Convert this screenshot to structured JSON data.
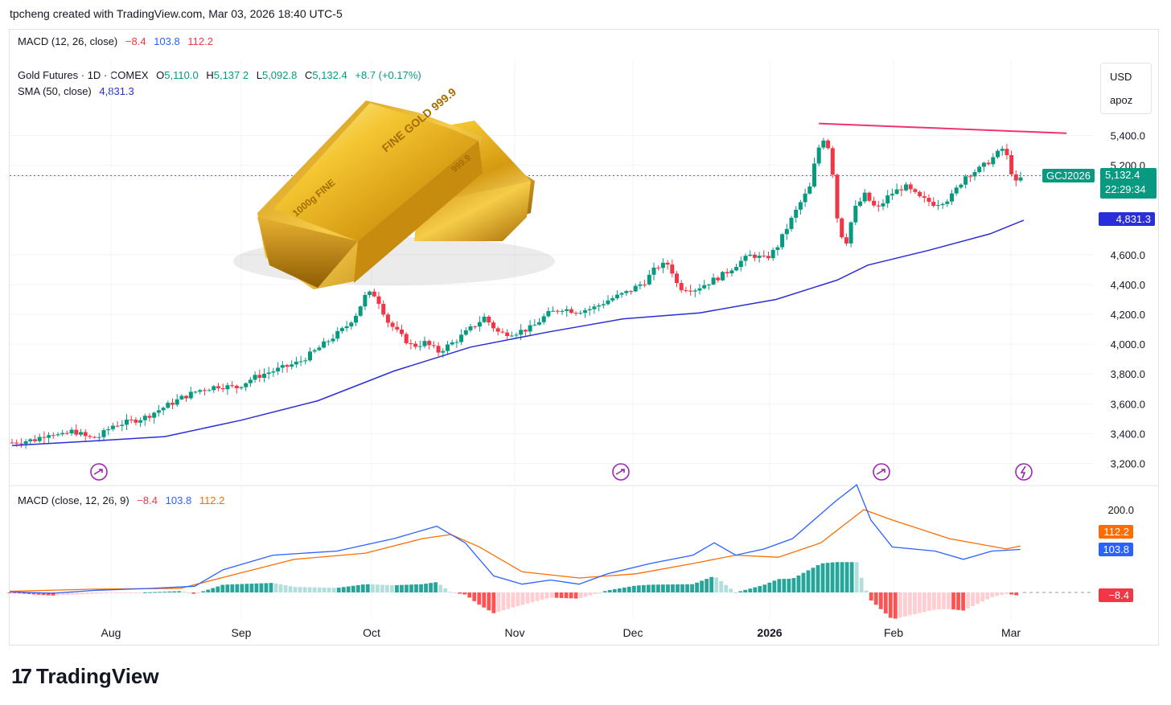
{
  "header": {
    "created_text": "tpcheng created with TradingView.com, Mar 03, 2026 18:40 UTC-5"
  },
  "top_legend": {
    "name": "MACD (12, 26, close)",
    "v1": "−8.4",
    "v2": "103.8",
    "v3": "112.2"
  },
  "symbol": {
    "name": "Gold Futures · 1D · COMEX",
    "o_label": "O",
    "o": "5,110.0",
    "h_label": "H",
    "h": "5,137.2",
    "l_label": "L",
    "l": "5,092.8",
    "c_label": "C",
    "c": "5,132.4",
    "change": "+8.7 (+0.17%)"
  },
  "sma_legend": {
    "name": "SMA (50, close)",
    "value": "4,831.3"
  },
  "macd_legend": {
    "name": "MACD (close, 12, 26, 9)",
    "v1": "−8.4",
    "v2": "103.8",
    "v3": "112.2"
  },
  "unit_labels": {
    "currency": "USD",
    "extra": "apoz"
  },
  "price_tags": {
    "ticker": "GCJ2026",
    "last": "5,132.4",
    "countdown": "22:29:34",
    "sma": "4,831.3",
    "macd_signal": "112.2",
    "macd_line": "103.8",
    "macd_hist": "−8.4"
  },
  "price_axis_ticks": [
    "5,400.0",
    "5,200.0",
    "4,600.0",
    "4,400.0",
    "4,200.0",
    "4,000.0",
    "3,800.0",
    "3,600.0",
    "3,400.0",
    "3,200.0"
  ],
  "macd_axis_ticks": [
    "200.0"
  ],
  "time_axis_labels": [
    "Aug",
    "Sep",
    "Oct",
    "Nov",
    "Dec",
    "2026",
    "Feb",
    "Mar"
  ],
  "gold_bar_text": {
    "front_top": "FINE GOLD 999.9",
    "front_side": "1000g FINE",
    "back_top": "999.9"
  },
  "branding": {
    "logo_text": "TradingView",
    "logo_mark": "17"
  },
  "colors": {
    "up": "#089981",
    "down": "#f23645",
    "sma": "#2a2ed6",
    "macd": "#2962ff",
    "signal": "#ff6d00",
    "resistance": "#f0336c"
  },
  "chart_data": {
    "type": "candlestick",
    "instrument": "Gold Futures · 1D · COMEX",
    "ylim": [
      3100,
      5650
    ],
    "y_ticks": [
      3200,
      3400,
      3600,
      3800,
      4000,
      4200,
      4400,
      4600,
      5200,
      5400
    ],
    "x_labels": [
      "Aug",
      "Sep",
      "Oct",
      "Nov",
      "Dec",
      "2026",
      "Feb",
      "Mar"
    ],
    "close_path": [
      {
        "x": 0,
        "y": 3340
      },
      {
        "x": 15,
        "y": 3360
      },
      {
        "x": 25,
        "y": 3410
      },
      {
        "x": 32,
        "y": 3380
      },
      {
        "x": 40,
        "y": 3420
      },
      {
        "x": 50,
        "y": 3370
      },
      {
        "x": 57,
        "y": 3380
      },
      {
        "x": 66,
        "y": 3455
      },
      {
        "x": 75,
        "y": 3475
      },
      {
        "x": 87,
        "y": 3510
      },
      {
        "x": 100,
        "y": 3580
      },
      {
        "x": 111,
        "y": 3640
      },
      {
        "x": 122,
        "y": 3690
      },
      {
        "x": 135,
        "y": 3720
      },
      {
        "x": 147,
        "y": 3710
      },
      {
        "x": 157,
        "y": 3770
      },
      {
        "x": 166,
        "y": 3805
      },
      {
        "x": 177,
        "y": 3840
      },
      {
        "x": 188,
        "y": 3880
      },
      {
        "x": 199,
        "y": 3960
      },
      {
        "x": 209,
        "y": 4040
      },
      {
        "x": 218,
        "y": 4110
      },
      {
        "x": 225,
        "y": 4200
      },
      {
        "x": 232,
        "y": 4340
      },
      {
        "x": 238,
        "y": 4330
      },
      {
        "x": 246,
        "y": 4150
      },
      {
        "x": 254,
        "y": 4060
      },
      {
        "x": 262,
        "y": 3985
      },
      {
        "x": 270,
        "y": 4010
      },
      {
        "x": 279,
        "y": 3950
      },
      {
        "x": 290,
        "y": 4020
      },
      {
        "x": 302,
        "y": 4120
      },
      {
        "x": 309,
        "y": 4180
      },
      {
        "x": 319,
        "y": 4070
      },
      {
        "x": 330,
        "y": 4080
      },
      {
        "x": 340,
        "y": 4110
      },
      {
        "x": 350,
        "y": 4200
      },
      {
        "x": 360,
        "y": 4240
      },
      {
        "x": 369,
        "y": 4220
      },
      {
        "x": 380,
        "y": 4240
      },
      {
        "x": 391,
        "y": 4300
      },
      {
        "x": 403,
        "y": 4350
      },
      {
        "x": 414,
        "y": 4420
      },
      {
        "x": 422,
        "y": 4520
      },
      {
        "x": 430,
        "y": 4540
      },
      {
        "x": 436,
        "y": 4380
      },
      {
        "x": 447,
        "y": 4370
      },
      {
        "x": 457,
        "y": 4420
      },
      {
        "x": 466,
        "y": 4470
      },
      {
        "x": 476,
        "y": 4550
      },
      {
        "x": 484,
        "y": 4600
      },
      {
        "x": 493,
        "y": 4570
      },
      {
        "x": 500,
        "y": 4640
      },
      {
        "x": 508,
        "y": 4800
      },
      {
        "x": 516,
        "y": 4950
      },
      {
        "x": 522,
        "y": 5050
      },
      {
        "x": 527,
        "y": 5300
      },
      {
        "x": 532,
        "y": 5400
      },
      {
        "x": 536,
        "y": 5250
      },
      {
        "x": 540,
        "y": 4850
      },
      {
        "x": 545,
        "y": 4650
      },
      {
        "x": 551,
        "y": 4900
      },
      {
        "x": 558,
        "y": 5000
      },
      {
        "x": 566,
        "y": 4900
      },
      {
        "x": 574,
        "y": 5000
      },
      {
        "x": 584,
        "y": 5060
      },
      {
        "x": 594,
        "y": 4980
      },
      {
        "x": 604,
        "y": 4940
      },
      {
        "x": 614,
        "y": 4980
      },
      {
        "x": 624,
        "y": 5130
      },
      {
        "x": 634,
        "y": 5180
      },
      {
        "x": 643,
        "y": 5260
      },
      {
        "x": 648,
        "y": 5310
      },
      {
        "x": 652,
        "y": 5240
      },
      {
        "x": 656,
        "y": 5070
      },
      {
        "x": 662,
        "y": 5132.4
      }
    ],
    "sma50": {
      "name": "SMA (50, close)",
      "points": [
        {
          "x": 0,
          "y": 3320
        },
        {
          "x": 60,
          "y": 3355
        },
        {
          "x": 100,
          "y": 3380
        },
        {
          "x": 150,
          "y": 3490
        },
        {
          "x": 200,
          "y": 3620
        },
        {
          "x": 250,
          "y": 3820
        },
        {
          "x": 300,
          "y": 3980
        },
        {
          "x": 350,
          "y": 4080
        },
        {
          "x": 400,
          "y": 4170
        },
        {
          "x": 450,
          "y": 4210
        },
        {
          "x": 500,
          "y": 4300
        },
        {
          "x": 540,
          "y": 4430
        },
        {
          "x": 560,
          "y": 4530
        },
        {
          "x": 600,
          "y": 4630
        },
        {
          "x": 640,
          "y": 4740
        },
        {
          "x": 662,
          "y": 4831.3
        }
      ]
    },
    "resistance_line": {
      "x1": 528,
      "y1": 5480,
      "x2": 690,
      "y2": 5415
    },
    "last_price": 5132.4,
    "macd": {
      "ylim": [
        -60,
        240
      ],
      "macd_line": [
        {
          "x": 0,
          "y": 2
        },
        {
          "x": 30,
          "y": -2
        },
        {
          "x": 60,
          "y": 5
        },
        {
          "x": 100,
          "y": 10
        },
        {
          "x": 130,
          "y": 15
        },
        {
          "x": 150,
          "y": 55
        },
        {
          "x": 185,
          "y": 90
        },
        {
          "x": 230,
          "y": 100
        },
        {
          "x": 270,
          "y": 130
        },
        {
          "x": 300,
          "y": 160
        },
        {
          "x": 320,
          "y": 120
        },
        {
          "x": 340,
          "y": 40
        },
        {
          "x": 360,
          "y": 20
        },
        {
          "x": 380,
          "y": 30
        },
        {
          "x": 400,
          "y": 20
        },
        {
          "x": 420,
          "y": 45
        },
        {
          "x": 450,
          "y": 70
        },
        {
          "x": 480,
          "y": 90
        },
        {
          "x": 495,
          "y": 120
        },
        {
          "x": 510,
          "y": 90
        },
        {
          "x": 530,
          "y": 105
        },
        {
          "x": 550,
          "y": 130
        },
        {
          "x": 580,
          "y": 220
        },
        {
          "x": 595,
          "y": 260
        },
        {
          "x": 605,
          "y": 175
        },
        {
          "x": 620,
          "y": 110
        },
        {
          "x": 650,
          "y": 100
        },
        {
          "x": 670,
          "y": 80
        },
        {
          "x": 690,
          "y": 100
        },
        {
          "x": 710,
          "y": 103.8
        }
      ],
      "signal_line": [
        {
          "x": 0,
          "y": 3
        },
        {
          "x": 60,
          "y": 8
        },
        {
          "x": 120,
          "y": 10
        },
        {
          "x": 160,
          "y": 45
        },
        {
          "x": 200,
          "y": 80
        },
        {
          "x": 250,
          "y": 95
        },
        {
          "x": 290,
          "y": 130
        },
        {
          "x": 310,
          "y": 140
        },
        {
          "x": 330,
          "y": 110
        },
        {
          "x": 360,
          "y": 50
        },
        {
          "x": 400,
          "y": 35
        },
        {
          "x": 440,
          "y": 45
        },
        {
          "x": 480,
          "y": 70
        },
        {
          "x": 510,
          "y": 90
        },
        {
          "x": 540,
          "y": 85
        },
        {
          "x": 570,
          "y": 120
        },
        {
          "x": 600,
          "y": 200
        },
        {
          "x": 620,
          "y": 175
        },
        {
          "x": 660,
          "y": 130
        },
        {
          "x": 700,
          "y": 105
        },
        {
          "x": 710,
          "y": 112.2
        }
      ],
      "histogram_last": -8.4
    }
  }
}
